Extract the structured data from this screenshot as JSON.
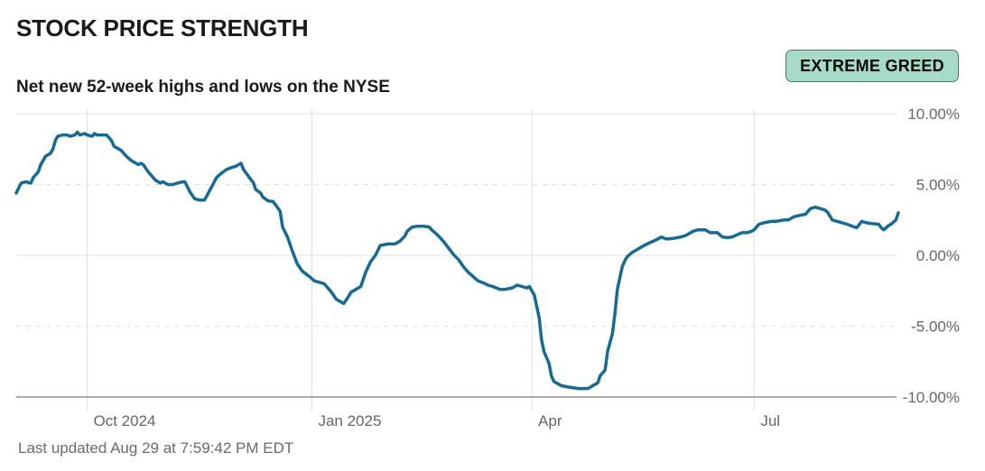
{
  "header": {
    "title": "STOCK PRICE STRENGTH",
    "subtitle": "Net new 52-week highs and lows on the NYSE",
    "badge": "EXTREME GREED"
  },
  "footer": {
    "last_updated": "Last updated Aug 29 at 7:59:42 PM EDT"
  },
  "colors": {
    "line": "#166A94",
    "badge_bg": "#A6DBC7",
    "badge_border": "#50756A",
    "grid": "#E0E0E0",
    "axis": "#8F8F8F",
    "tick_text": "#666666"
  },
  "chart_data": {
    "type": "line",
    "title": "Net new 52-week highs and lows on the NYSE",
    "unit": "%",
    "ylim": [
      -10,
      10
    ],
    "legend": "none",
    "grid": "on",
    "x_domain": [
      "2024-09-02",
      "2025-08-29"
    ],
    "y_ticks": [
      {
        "value": 10,
        "label": "10.00%",
        "style": "solid"
      },
      {
        "value": 5,
        "label": "5.00%",
        "style": "dashed"
      },
      {
        "value": 0,
        "label": "0.00%",
        "style": "solid"
      },
      {
        "value": -5,
        "label": "-5.00%",
        "style": "dashed"
      },
      {
        "value": -10,
        "label": "-10.00%",
        "style": "axis"
      }
    ],
    "x_ticks": [
      {
        "date": "2024-10-01",
        "label": "Oct 2024"
      },
      {
        "date": "2025-01-01",
        "label": "Jan 2025"
      },
      {
        "date": "2025-04-01",
        "label": "Apr"
      },
      {
        "date": "2025-07-01",
        "label": "Jul"
      }
    ],
    "points": [
      [
        "2024-09-02",
        4.4
      ],
      [
        "2024-09-04",
        5.1
      ],
      [
        "2024-09-06",
        5.2
      ],
      [
        "2024-09-08",
        5.1
      ],
      [
        "2024-09-09",
        5.5
      ],
      [
        "2024-09-11",
        5.9
      ],
      [
        "2024-09-12",
        6.4
      ],
      [
        "2024-09-14",
        7.0
      ],
      [
        "2024-09-16",
        7.2
      ],
      [
        "2024-09-17",
        7.5
      ],
      [
        "2024-09-18",
        8.1
      ],
      [
        "2024-09-19",
        8.4
      ],
      [
        "2024-09-21",
        8.5
      ],
      [
        "2024-09-23",
        8.5
      ],
      [
        "2024-09-24",
        8.4
      ],
      [
        "2024-09-26",
        8.5
      ],
      [
        "2024-09-27",
        8.7
      ],
      [
        "2024-09-28",
        8.5
      ],
      [
        "2024-09-30",
        8.6
      ],
      [
        "2024-10-01",
        8.5
      ],
      [
        "2024-10-03",
        8.4
      ],
      [
        "2024-10-04",
        8.6
      ],
      [
        "2024-10-05",
        8.5
      ],
      [
        "2024-10-07",
        8.5
      ],
      [
        "2024-10-09",
        8.5
      ],
      [
        "2024-10-11",
        8.1
      ],
      [
        "2024-10-12",
        7.7
      ],
      [
        "2024-10-13",
        7.6
      ],
      [
        "2024-10-15",
        7.4
      ],
      [
        "2024-10-16",
        7.2
      ],
      [
        "2024-10-17",
        7.0
      ],
      [
        "2024-10-19",
        6.7
      ],
      [
        "2024-10-20",
        6.6
      ],
      [
        "2024-10-22",
        6.4
      ],
      [
        "2024-10-23",
        6.5
      ],
      [
        "2024-10-24",
        6.4
      ],
      [
        "2024-10-26",
        5.9
      ],
      [
        "2024-10-28",
        5.5
      ],
      [
        "2024-10-29",
        5.3
      ],
      [
        "2024-10-31",
        5.1
      ],
      [
        "2024-11-01",
        5.2
      ],
      [
        "2024-11-03",
        5.0
      ],
      [
        "2024-11-05",
        5.0
      ],
      [
        "2024-11-07",
        5.1
      ],
      [
        "2024-11-08",
        5.15
      ],
      [
        "2024-11-10",
        5.2
      ],
      [
        "2024-11-12",
        4.5
      ],
      [
        "2024-11-14",
        4.0
      ],
      [
        "2024-11-16",
        3.9
      ],
      [
        "2024-11-18",
        3.9
      ],
      [
        "2024-11-19",
        4.2
      ],
      [
        "2024-11-21",
        4.85
      ],
      [
        "2024-11-23",
        5.5
      ],
      [
        "2024-11-25",
        5.8
      ],
      [
        "2024-11-27",
        6.05
      ],
      [
        "2024-11-29",
        6.2
      ],
      [
        "2024-12-01",
        6.3
      ],
      [
        "2024-12-02",
        6.4
      ],
      [
        "2024-12-03",
        6.5
      ],
      [
        "2024-12-04",
        6.05
      ],
      [
        "2024-12-06",
        5.6
      ],
      [
        "2024-12-07",
        5.35
      ],
      [
        "2024-12-08",
        5.15
      ],
      [
        "2024-12-09",
        4.65
      ],
      [
        "2024-12-11",
        4.4
      ],
      [
        "2024-12-12",
        4.1
      ],
      [
        "2024-12-14",
        3.85
      ],
      [
        "2024-12-16",
        3.8
      ],
      [
        "2024-12-17",
        3.6
      ],
      [
        "2024-12-19",
        3.1
      ],
      [
        "2024-12-20",
        2.0
      ],
      [
        "2024-12-22",
        1.3
      ],
      [
        "2024-12-24",
        0.3
      ],
      [
        "2024-12-26",
        -0.6
      ],
      [
        "2024-12-28",
        -1.1
      ],
      [
        "2024-12-31",
        -1.5
      ],
      [
        "2025-01-02",
        -1.8
      ],
      [
        "2025-01-06",
        -2.0
      ],
      [
        "2025-01-09",
        -2.6
      ],
      [
        "2025-01-11",
        -3.1
      ],
      [
        "2025-01-14",
        -3.4
      ],
      [
        "2025-01-16",
        -2.9
      ],
      [
        "2025-01-17",
        -2.6
      ],
      [
        "2025-01-19",
        -2.4
      ],
      [
        "2025-01-21",
        -2.2
      ],
      [
        "2025-01-23",
        -1.2
      ],
      [
        "2025-01-25",
        -0.45
      ],
      [
        "2025-01-27",
        0.0
      ],
      [
        "2025-01-29",
        0.7
      ],
      [
        "2025-02-01",
        0.8
      ],
      [
        "2025-02-04",
        0.8
      ],
      [
        "2025-02-06",
        1.0
      ],
      [
        "2025-02-08",
        1.35
      ],
      [
        "2025-02-09",
        1.7
      ],
      [
        "2025-02-11",
        2.0
      ],
      [
        "2025-02-13",
        2.05
      ],
      [
        "2025-02-16",
        2.05
      ],
      [
        "2025-02-18",
        2.0
      ],
      [
        "2025-02-19",
        1.8
      ],
      [
        "2025-02-21",
        1.5
      ],
      [
        "2025-02-23",
        1.15
      ],
      [
        "2025-02-24",
        0.95
      ],
      [
        "2025-02-26",
        0.5
      ],
      [
        "2025-02-28",
        0.05
      ],
      [
        "2025-03-02",
        -0.3
      ],
      [
        "2025-03-04",
        -0.8
      ],
      [
        "2025-03-06",
        -1.2
      ],
      [
        "2025-03-08",
        -1.5
      ],
      [
        "2025-03-10",
        -1.8
      ],
      [
        "2025-03-13",
        -2.0
      ],
      [
        "2025-03-14",
        -2.1
      ],
      [
        "2025-03-16",
        -2.2
      ],
      [
        "2025-03-19",
        -2.4
      ],
      [
        "2025-03-21",
        -2.4
      ],
      [
        "2025-03-24",
        -2.3
      ],
      [
        "2025-03-26",
        -2.1
      ],
      [
        "2025-03-28",
        -2.2
      ],
      [
        "2025-03-30",
        -2.3
      ],
      [
        "2025-03-31",
        -2.2
      ],
      [
        "2025-04-02",
        -2.8
      ],
      [
        "2025-04-04",
        -4.4
      ],
      [
        "2025-04-05",
        -6.0
      ],
      [
        "2025-04-06",
        -6.8
      ],
      [
        "2025-04-08",
        -7.6
      ],
      [
        "2025-04-09",
        -8.5
      ],
      [
        "2025-04-10",
        -8.9
      ],
      [
        "2025-04-11",
        -9.0
      ],
      [
        "2025-04-13",
        -9.2
      ],
      [
        "2025-04-16",
        -9.3
      ],
      [
        "2025-04-20",
        -9.4
      ],
      [
        "2025-04-24",
        -9.4
      ],
      [
        "2025-04-26",
        -9.2
      ],
      [
        "2025-04-28",
        -9.0
      ],
      [
        "2025-04-29",
        -8.5
      ],
      [
        "2025-05-01",
        -8.1
      ],
      [
        "2025-05-02",
        -6.8
      ],
      [
        "2025-05-04",
        -5.5
      ],
      [
        "2025-05-05",
        -4.1
      ],
      [
        "2025-05-06",
        -2.4
      ],
      [
        "2025-05-08",
        -0.8
      ],
      [
        "2025-05-09",
        -0.4
      ],
      [
        "2025-05-10",
        -0.1
      ],
      [
        "2025-05-12",
        0.2
      ],
      [
        "2025-05-14",
        0.4
      ],
      [
        "2025-05-17",
        0.7
      ],
      [
        "2025-05-20",
        0.95
      ],
      [
        "2025-05-22",
        1.1
      ],
      [
        "2025-05-24",
        1.3
      ],
      [
        "2025-05-26",
        1.15
      ],
      [
        "2025-05-29",
        1.2
      ],
      [
        "2025-06-01",
        1.3
      ],
      [
        "2025-06-03",
        1.4
      ],
      [
        "2025-06-06",
        1.7
      ],
      [
        "2025-06-08",
        1.8
      ],
      [
        "2025-06-11",
        1.8
      ],
      [
        "2025-06-13",
        1.6
      ],
      [
        "2025-06-16",
        1.6
      ],
      [
        "2025-06-18",
        1.3
      ],
      [
        "2025-06-20",
        1.25
      ],
      [
        "2025-06-22",
        1.3
      ],
      [
        "2025-06-24",
        1.45
      ],
      [
        "2025-06-26",
        1.6
      ],
      [
        "2025-06-28",
        1.6
      ],
      [
        "2025-06-30",
        1.7
      ],
      [
        "2025-07-01",
        1.8
      ],
      [
        "2025-07-03",
        2.2
      ],
      [
        "2025-07-05",
        2.3
      ],
      [
        "2025-07-08",
        2.4
      ],
      [
        "2025-07-10",
        2.4
      ],
      [
        "2025-07-13",
        2.5
      ],
      [
        "2025-07-15",
        2.5
      ],
      [
        "2025-07-17",
        2.7
      ],
      [
        "2025-07-19",
        2.8
      ],
      [
        "2025-07-22",
        2.9
      ],
      [
        "2025-07-24",
        3.3
      ],
      [
        "2025-07-26",
        3.4
      ],
      [
        "2025-07-28",
        3.3
      ],
      [
        "2025-07-30",
        3.2
      ],
      [
        "2025-07-31",
        3.05
      ],
      [
        "2025-08-02",
        2.5
      ],
      [
        "2025-08-04",
        2.4
      ],
      [
        "2025-08-06",
        2.3
      ],
      [
        "2025-08-08",
        2.2
      ],
      [
        "2025-08-11",
        2.0
      ],
      [
        "2025-08-12",
        1.95
      ],
      [
        "2025-08-14",
        2.4
      ],
      [
        "2025-08-16",
        2.3
      ],
      [
        "2025-08-18",
        2.25
      ],
      [
        "2025-08-21",
        2.2
      ],
      [
        "2025-08-22",
        1.95
      ],
      [
        "2025-08-23",
        1.8
      ],
      [
        "2025-08-25",
        2.1
      ],
      [
        "2025-08-26",
        2.2
      ],
      [
        "2025-08-28",
        2.5
      ],
      [
        "2025-08-29",
        3.0
      ]
    ]
  }
}
